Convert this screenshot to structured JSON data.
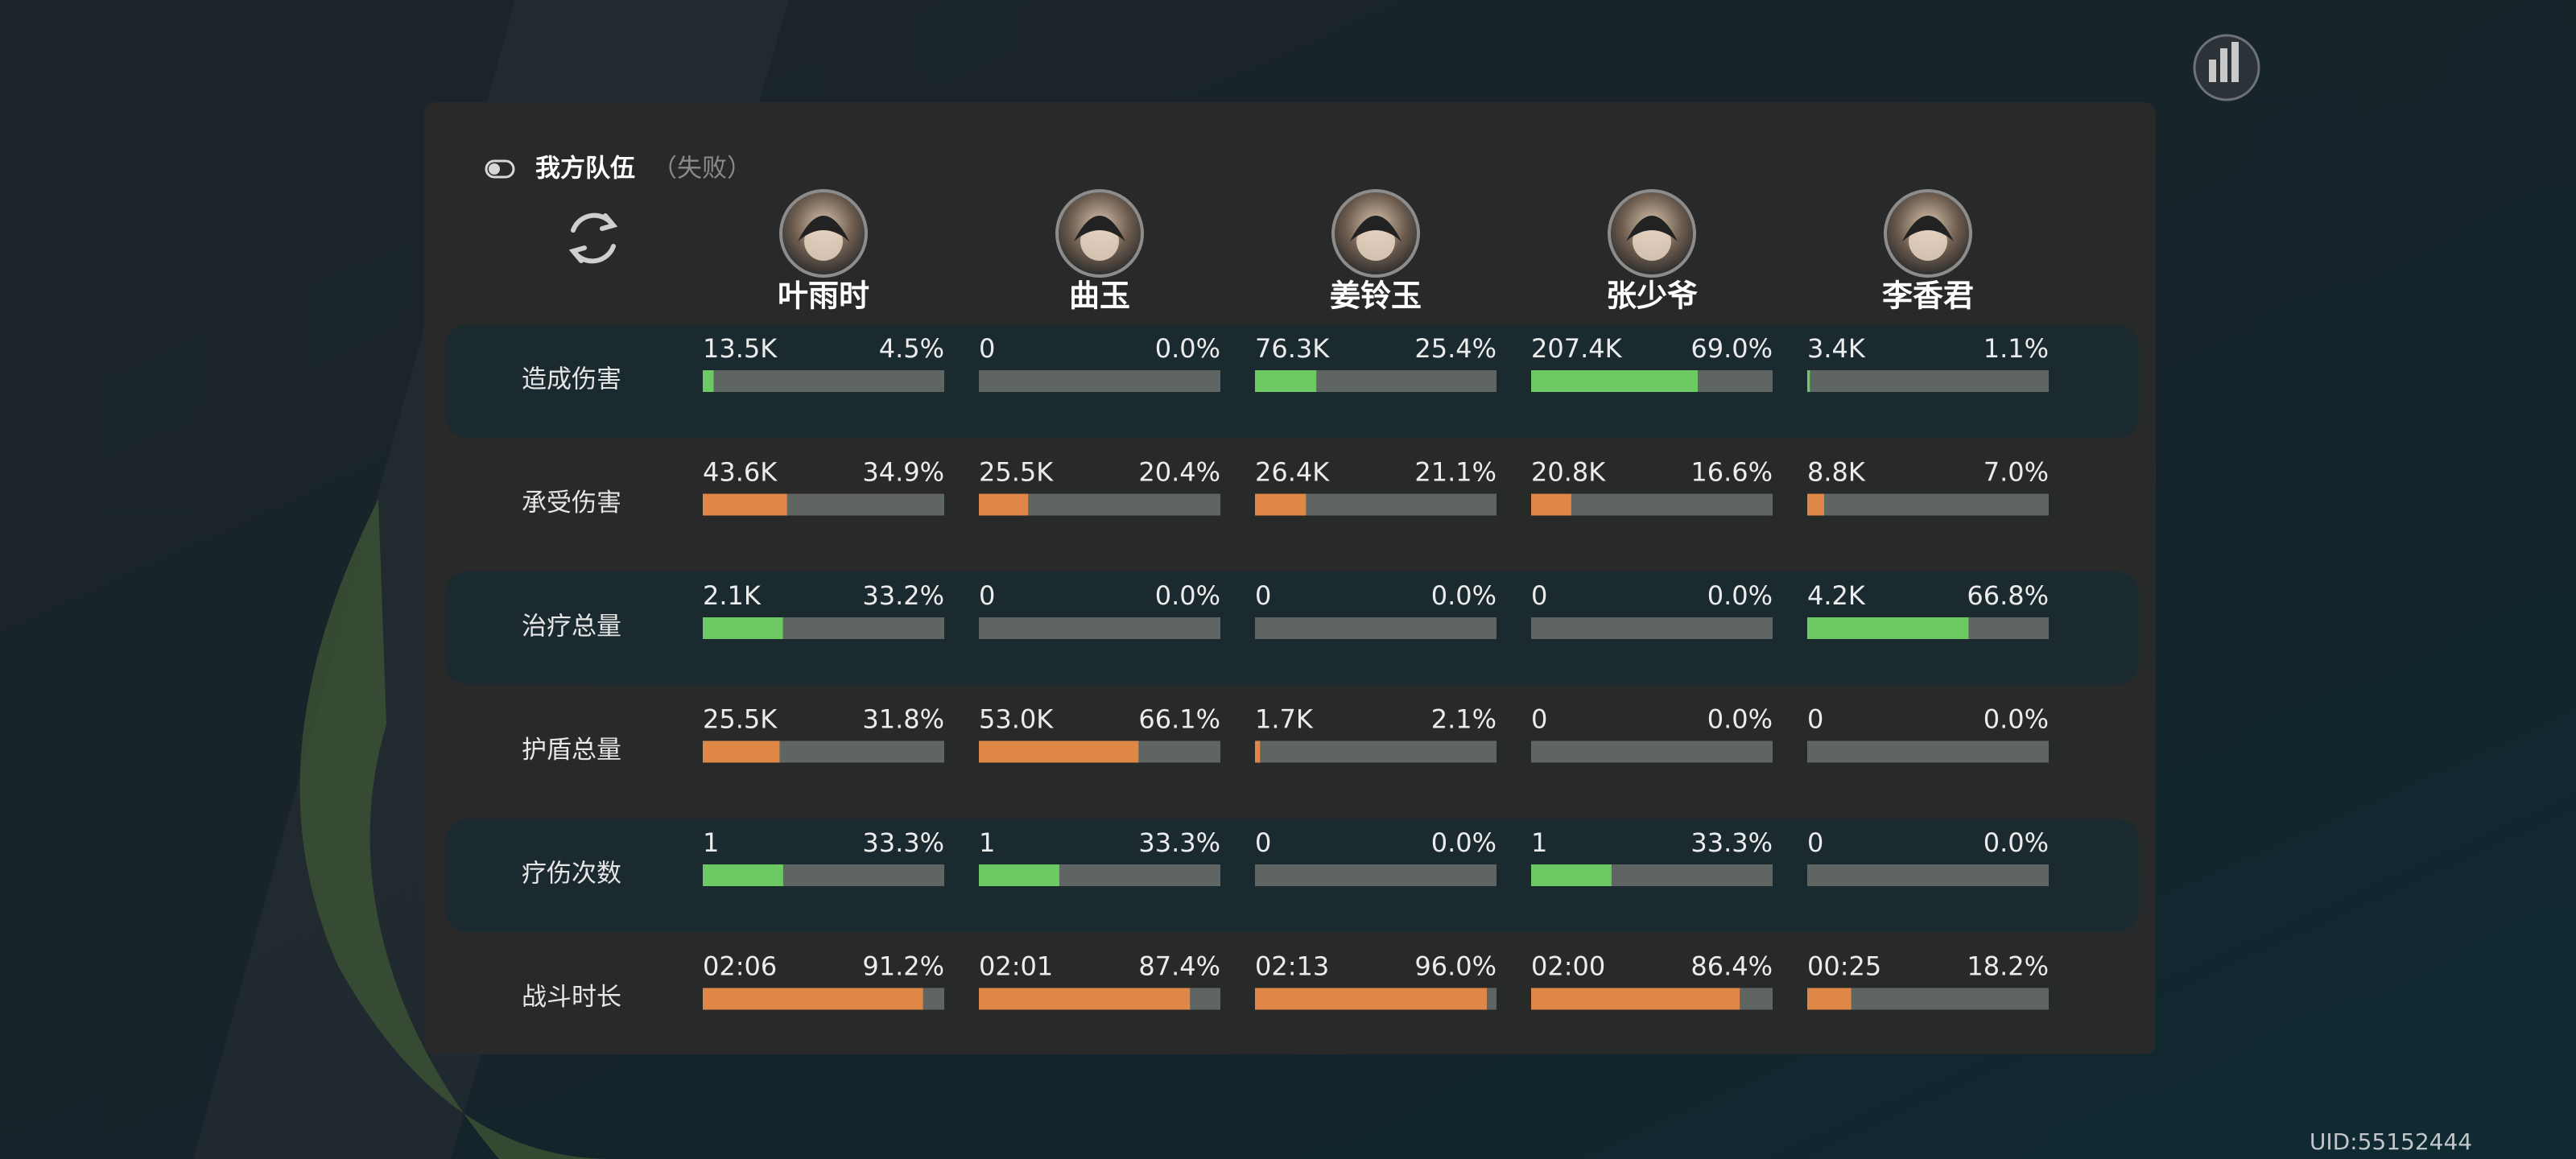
{
  "header": {
    "title": "我方队伍",
    "status": "（失败）"
  },
  "members": [
    "叶雨时",
    "曲玉",
    "姜铃玉",
    "张少爷",
    "李香君"
  ],
  "rows": [
    {
      "label": "造成伤害",
      "color": "#6cc964",
      "cells": [
        {
          "value": "13.5K",
          "percent": 4.5,
          "percent_label": "4.5%"
        },
        {
          "value": "0",
          "percent": 0,
          "percent_label": "0.0%"
        },
        {
          "value": "76.3K",
          "percent": 25.4,
          "percent_label": "25.4%"
        },
        {
          "value": "207.4K",
          "percent": 69.0,
          "percent_label": "69.0%"
        },
        {
          "value": "3.4K",
          "percent": 1.1,
          "percent_label": "1.1%"
        }
      ]
    },
    {
      "label": "承受伤害",
      "color": "#df8746",
      "cells": [
        {
          "value": "43.6K",
          "percent": 34.9,
          "percent_label": "34.9%"
        },
        {
          "value": "25.5K",
          "percent": 20.4,
          "percent_label": "20.4%"
        },
        {
          "value": "26.4K",
          "percent": 21.1,
          "percent_label": "21.1%"
        },
        {
          "value": "20.8K",
          "percent": 16.6,
          "percent_label": "16.6%"
        },
        {
          "value": "8.8K",
          "percent": 7.0,
          "percent_label": "7.0%"
        }
      ]
    },
    {
      "label": "治疗总量",
      "color": "#6cc964",
      "cells": [
        {
          "value": "2.1K",
          "percent": 33.2,
          "percent_label": "33.2%"
        },
        {
          "value": "0",
          "percent": 0,
          "percent_label": "0.0%"
        },
        {
          "value": "0",
          "percent": 0,
          "percent_label": "0.0%"
        },
        {
          "value": "0",
          "percent": 0,
          "percent_label": "0.0%"
        },
        {
          "value": "4.2K",
          "percent": 66.8,
          "percent_label": "66.8%"
        }
      ]
    },
    {
      "label": "护盾总量",
      "color": "#df8746",
      "cells": [
        {
          "value": "25.5K",
          "percent": 31.8,
          "percent_label": "31.8%"
        },
        {
          "value": "53.0K",
          "percent": 66.1,
          "percent_label": "66.1%"
        },
        {
          "value": "1.7K",
          "percent": 2.1,
          "percent_label": "2.1%"
        },
        {
          "value": "0",
          "percent": 0,
          "percent_label": "0.0%"
        },
        {
          "value": "0",
          "percent": 0,
          "percent_label": "0.0%"
        }
      ]
    },
    {
      "label": "疗伤次数",
      "color": "#6cc964",
      "cells": [
        {
          "value": "1",
          "percent": 33.3,
          "percent_label": "33.3%"
        },
        {
          "value": "1",
          "percent": 33.3,
          "percent_label": "33.3%"
        },
        {
          "value": "0",
          "percent": 0,
          "percent_label": "0.0%"
        },
        {
          "value": "1",
          "percent": 33.3,
          "percent_label": "33.3%"
        },
        {
          "value": "0",
          "percent": 0,
          "percent_label": "0.0%"
        }
      ]
    },
    {
      "label": "战斗时长",
      "color": "#df8746",
      "cells": [
        {
          "value": "02:06",
          "percent": 91.2,
          "percent_label": "91.2%"
        },
        {
          "value": "02:01",
          "percent": 87.4,
          "percent_label": "87.4%"
        },
        {
          "value": "02:13",
          "percent": 96.0,
          "percent_label": "96.0%"
        },
        {
          "value": "02:00",
          "percent": 86.4,
          "percent_label": "86.4%"
        },
        {
          "value": "00:25",
          "percent": 18.2,
          "percent_label": "18.2%"
        }
      ]
    }
  ],
  "uid": "UID:55152444"
}
